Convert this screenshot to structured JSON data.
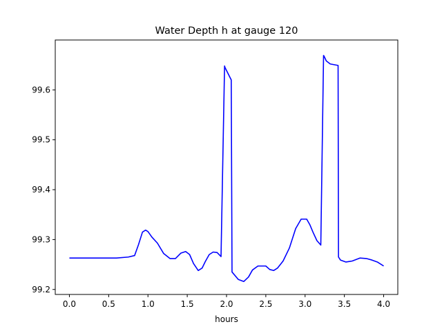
{
  "chart_data": {
    "type": "line",
    "title": "Water Depth h at gauge 120",
    "xlabel": "hours",
    "ylabel": "",
    "xlim": [
      -0.18,
      4.18
    ],
    "ylim": [
      99.19,
      99.7
    ],
    "grid": false,
    "xticks": [
      0.0,
      0.5,
      1.0,
      1.5,
      2.0,
      2.5,
      3.0,
      3.5,
      4.0
    ],
    "xtick_labels": [
      "0.0",
      "0.5",
      "1.0",
      "1.5",
      "2.0",
      "2.5",
      "3.0",
      "3.5",
      "4.0"
    ],
    "yticks": [
      99.2,
      99.3,
      99.4,
      99.5,
      99.6
    ],
    "ytick_labels": [
      "99.2",
      "99.3",
      "99.4",
      "99.5",
      "99.6"
    ],
    "series": [
      {
        "color": "#0000ff",
        "x": [
          0.0,
          0.3,
          0.6,
          0.75,
          0.83,
          0.88,
          0.93,
          0.97,
          1.0,
          1.05,
          1.12,
          1.2,
          1.28,
          1.35,
          1.42,
          1.48,
          1.53,
          1.58,
          1.64,
          1.69,
          1.73,
          1.78,
          1.83,
          1.88,
          1.93,
          1.975,
          1.98,
          2.06,
          2.07,
          2.15,
          2.22,
          2.28,
          2.33,
          2.4,
          2.5,
          2.55,
          2.6,
          2.65,
          2.72,
          2.8,
          2.88,
          2.95,
          3.02,
          3.06,
          3.1,
          3.15,
          3.2,
          3.235,
          3.24,
          3.27,
          3.32,
          3.42,
          3.425,
          3.45,
          3.52,
          3.6,
          3.7,
          3.78,
          3.85,
          3.92,
          3.97,
          4.0
        ],
        "y": [
          99.263,
          99.263,
          99.263,
          99.265,
          99.268,
          99.29,
          99.315,
          99.319,
          99.316,
          99.305,
          99.293,
          99.272,
          99.262,
          99.262,
          99.273,
          99.276,
          99.27,
          99.252,
          99.238,
          99.243,
          99.256,
          99.27,
          99.275,
          99.274,
          99.266,
          99.648,
          99.645,
          99.62,
          99.235,
          99.22,
          99.216,
          99.225,
          99.239,
          99.247,
          99.247,
          99.24,
          99.238,
          99.243,
          99.257,
          99.283,
          99.322,
          99.341,
          99.341,
          99.33,
          99.315,
          99.298,
          99.289,
          99.669,
          99.668,
          99.658,
          99.652,
          99.649,
          99.265,
          99.259,
          99.255,
          99.257,
          99.263,
          99.262,
          99.259,
          99.255,
          99.25,
          99.247
        ]
      }
    ]
  }
}
